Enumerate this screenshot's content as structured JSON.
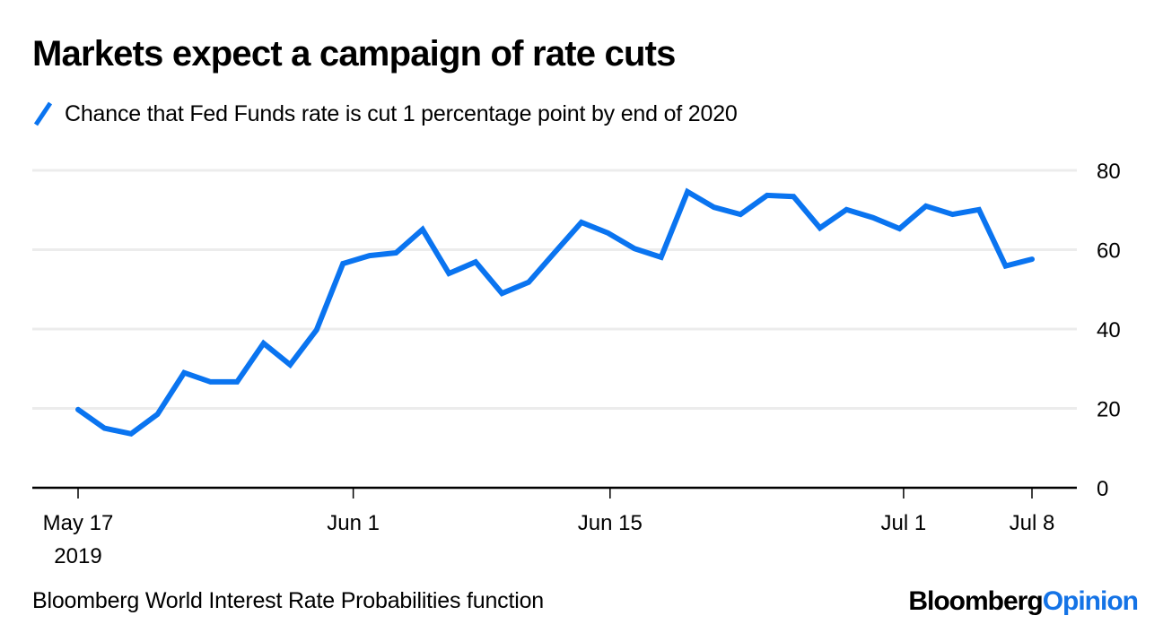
{
  "colors": {
    "line": "#0a74f0",
    "grid": "#ececec",
    "axis": "#000000",
    "brand_accent": "#1473e6"
  },
  "footer": {
    "source": "Bloomberg World Interest Rate Probabilities function",
    "brand_part1": "Bloomberg",
    "brand_part2": "Opinion"
  },
  "chart_data": {
    "type": "line",
    "title": "Markets expect a campaign of rate cuts",
    "xlabel": "",
    "ylabel": "",
    "x_unit": "days since May 17, 2019",
    "xlim": [
      0,
      52
    ],
    "ylim": [
      0,
      80
    ],
    "grid": true,
    "legend_position": "top-left",
    "y_axis_side": "right",
    "y_ticks": [
      0,
      20,
      40,
      60,
      80
    ],
    "y_tick_labels": [
      "0",
      "20",
      "40",
      "60",
      "80"
    ],
    "x_ticks": [
      {
        "x": 0,
        "label": "May 17",
        "sublabel": "2019"
      },
      {
        "x": 15,
        "label": "Jun 1",
        "sublabel": ""
      },
      {
        "x": 29,
        "label": "Jun 15",
        "sublabel": ""
      },
      {
        "x": 45,
        "label": "Jul 1",
        "sublabel": ""
      },
      {
        "x": 52,
        "label": "Jul 8",
        "sublabel": ""
      }
    ],
    "series": [
      {
        "name": "Chance that Fed Funds rate is cut 1 percentage point by end of 2020",
        "x": [
          0,
          1.44,
          2.89,
          4.33,
          5.78,
          7.22,
          8.67,
          10.11,
          11.56,
          13.0,
          14.44,
          15.89,
          17.33,
          18.78,
          20.22,
          21.67,
          23.11,
          24.56,
          26.0,
          27.44,
          28.89,
          30.33,
          31.78,
          33.22,
          34.67,
          36.11,
          37.56,
          39.0,
          40.44,
          41.89,
          43.33,
          44.78,
          46.22,
          47.67,
          49.11,
          50.56,
          52.0
        ],
        "values": [
          19.7,
          15.0,
          13.6,
          18.5,
          29.0,
          26.7,
          26.7,
          36.4,
          31.0,
          39.8,
          56.5,
          58.5,
          59.2,
          65.1,
          54.0,
          56.9,
          49.0,
          51.8,
          59.4,
          66.9,
          64.2,
          60.3,
          58.1,
          74.6,
          70.7,
          68.9,
          73.7,
          73.4,
          65.5,
          70.1,
          68.1,
          65.3,
          71.0,
          68.9,
          70.1,
          55.9,
          57.6
        ]
      }
    ]
  }
}
